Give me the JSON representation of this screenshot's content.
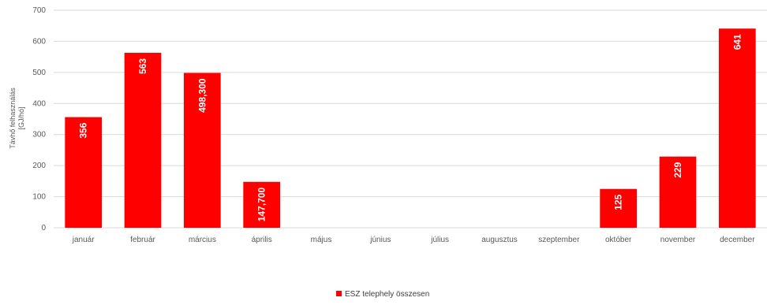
{
  "chart_data": {
    "type": "bar",
    "categories": [
      "január",
      "február",
      "március",
      "április",
      "május",
      "június",
      "július",
      "augusztus",
      "szeptember",
      "október",
      "november",
      "december"
    ],
    "series": [
      {
        "name": "ESZ telephely összesen",
        "color": "#ff0000",
        "values": [
          356,
          563,
          498.3,
          147.7,
          null,
          null,
          null,
          null,
          null,
          125,
          229,
          641
        ],
        "labels": [
          "356",
          "563",
          "498,300",
          "147,700",
          "",
          "",
          "",
          "",
          "",
          "125",
          "229",
          "641"
        ]
      }
    ],
    "ylabel_lines": [
      "Távhő felhasználás",
      "[GJ/hó]"
    ],
    "ylim": [
      0,
      700
    ],
    "yticks": [
      0,
      100,
      200,
      300,
      400,
      500,
      600,
      700
    ],
    "grid": true,
    "legend": "bottom"
  }
}
